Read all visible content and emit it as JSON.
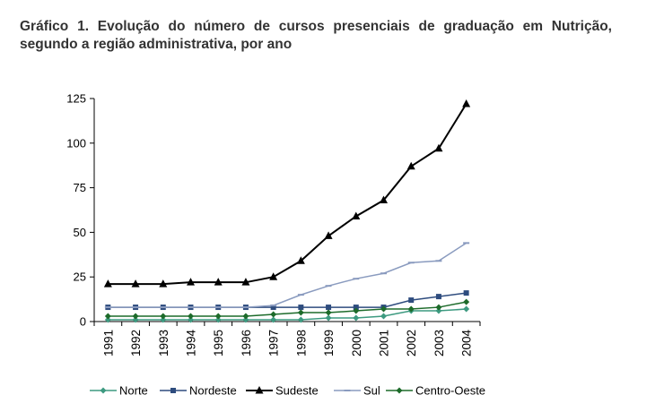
{
  "figure": {
    "caption": "Gráfico 1. Evolução do número de cursos presenciais de graduação em Nutrição, segundo a região administrativa, por ano"
  },
  "chart_data": {
    "type": "line",
    "title": "",
    "xlabel": "",
    "ylabel": "",
    "x": [
      "1991",
      "1992",
      "1993",
      "1994",
      "1995",
      "1996",
      "1997",
      "1998",
      "1999",
      "2000",
      "2001",
      "2002",
      "2003",
      "2004"
    ],
    "yticks": [
      0,
      25,
      50,
      75,
      100,
      125
    ],
    "ylim": [
      0,
      125
    ],
    "grid": false,
    "legend_position": "bottom",
    "series": [
      {
        "name": "Norte",
        "color": "#3d9a80",
        "marker": "diamond",
        "values": [
          1,
          1,
          1,
          1,
          1,
          1,
          1,
          1,
          2,
          2,
          3,
          6,
          6,
          7
        ]
      },
      {
        "name": "Nordeste",
        "color": "#2e4c7e",
        "marker": "square",
        "values": [
          8,
          8,
          8,
          8,
          8,
          8,
          8,
          8,
          8,
          8,
          8,
          12,
          14,
          16
        ]
      },
      {
        "name": "Sudeste",
        "color": "#000000",
        "marker": "triangle",
        "values": [
          21,
          21,
          21,
          22,
          22,
          22,
          25,
          34,
          48,
          59,
          68,
          87,
          97,
          122
        ]
      },
      {
        "name": "Sul",
        "color": "#8a9bbf",
        "marker": "dash",
        "values": [
          8,
          8,
          8,
          8,
          8,
          8,
          9,
          15,
          20,
          24,
          27,
          33,
          34,
          44
        ]
      },
      {
        "name": "Centro-Oeste",
        "color": "#1d6b2a",
        "marker": "diamond",
        "values": [
          3,
          3,
          3,
          3,
          3,
          3,
          4,
          5,
          5,
          6,
          7,
          7,
          8,
          11
        ]
      }
    ]
  }
}
